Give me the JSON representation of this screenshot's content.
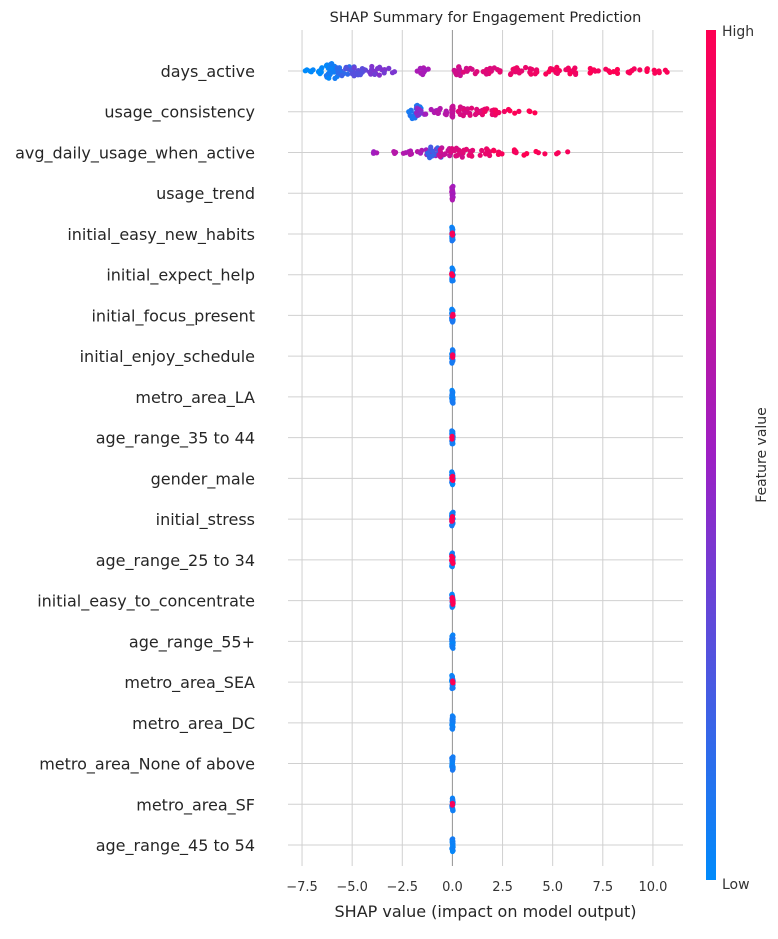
{
  "chart_data": {
    "type": "scatter",
    "subtype": "shap-beeswarm",
    "title": "SHAP Summary for Engagement Prediction",
    "xlabel": "SHAP value (impact on model output)",
    "ylabel": "",
    "xlim": [
      -8.2,
      11.5
    ],
    "xticks": [
      -7.5,
      -5.0,
      -2.5,
      0.0,
      2.5,
      5.0,
      7.5,
      10.0
    ],
    "xtick_labels": [
      "−7.5",
      "−5.0",
      "−2.5",
      "0.0",
      "2.5",
      "5.0",
      "7.5",
      "10.0"
    ],
    "grid": true,
    "colorbar": {
      "label": "Feature value",
      "high_label": "High",
      "low_label": "Low",
      "low_color": "#008bfb",
      "high_color": "#ff0052"
    },
    "features": [
      {
        "name": "days_active",
        "clusters": [
          {
            "x": -7.3,
            "spread": 1,
            "color": 0.0
          },
          {
            "x": -6.8,
            "spread": 1,
            "color": 0.0
          },
          {
            "x": -6.5,
            "spread": 3,
            "color": 0.0
          },
          {
            "x": -6.0,
            "spread": 7,
            "color": 0.05
          },
          {
            "x": -5.4,
            "spread": 4,
            "color": 0.15
          },
          {
            "x": -5.0,
            "spread": 4,
            "color": 0.25
          },
          {
            "x": -4.6,
            "spread": 3,
            "color": 0.3
          },
          {
            "x": -3.8,
            "spread": 4,
            "color": 0.4
          },
          {
            "x": -3.2,
            "spread": 2,
            "color": 0.4
          },
          {
            "x": -1.5,
            "spread": 3,
            "color": 0.55
          },
          {
            "x": 0.4,
            "spread": 4,
            "color": 0.75
          },
          {
            "x": 0.9,
            "spread": 2,
            "color": 0.8
          },
          {
            "x": 1.8,
            "spread": 3,
            "color": 0.85
          },
          {
            "x": 2.5,
            "spread": 1,
            "color": 0.85
          },
          {
            "x": 3.2,
            "spread": 3,
            "color": 0.9
          },
          {
            "x": 4.0,
            "spread": 3,
            "color": 0.9
          },
          {
            "x": 5.0,
            "spread": 3,
            "color": 0.95
          },
          {
            "x": 6.0,
            "spread": 3,
            "color": 0.95
          },
          {
            "x": 7.0,
            "spread": 2,
            "color": 0.97
          },
          {
            "x": 8.0,
            "spread": 2,
            "color": 0.97
          },
          {
            "x": 9.0,
            "spread": 2,
            "color": 0.98
          },
          {
            "x": 10.0,
            "spread": 2,
            "color": 1.0
          },
          {
            "x": 10.6,
            "spread": 1,
            "color": 1.0
          }
        ]
      },
      {
        "name": "usage_consistency",
        "clusters": [
          {
            "x": -1.9,
            "spread": 6,
            "color": 0.1
          },
          {
            "x": -1.5,
            "spread": 3,
            "color": 0.45
          },
          {
            "x": -1.0,
            "spread": 2,
            "color": 0.55
          },
          {
            "x": -0.5,
            "spread": 3,
            "color": 0.6
          },
          {
            "x": 0.0,
            "spread": 5,
            "color": 0.7
          },
          {
            "x": 0.6,
            "spread": 4,
            "color": 0.8
          },
          {
            "x": 1.2,
            "spread": 3,
            "color": 0.85
          },
          {
            "x": 1.8,
            "spread": 3,
            "color": 0.9
          },
          {
            "x": 2.5,
            "spread": 2,
            "color": 0.95
          },
          {
            "x": 3.2,
            "spread": 1,
            "color": 0.97
          },
          {
            "x": 3.8,
            "spread": 1,
            "color": 1.0
          }
        ]
      },
      {
        "name": "avg_daily_usage_when_active",
        "clusters": [
          {
            "x": -3.6,
            "spread": 1,
            "color": 0.55
          },
          {
            "x": -3.1,
            "spread": 1,
            "color": 0.6
          },
          {
            "x": -2.5,
            "spread": 1,
            "color": 0.6
          },
          {
            "x": -1.8,
            "spread": 2,
            "color": 0.6
          },
          {
            "x": -1.1,
            "spread": 3,
            "color": 0.55
          },
          {
            "x": -0.9,
            "spread": 5,
            "color": 0.2
          },
          {
            "x": -0.4,
            "spread": 4,
            "color": 0.7
          },
          {
            "x": 0.2,
            "spread": 4,
            "color": 0.8
          },
          {
            "x": 0.8,
            "spread": 3,
            "color": 0.85
          },
          {
            "x": 1.6,
            "spread": 3,
            "color": 0.9
          },
          {
            "x": 2.4,
            "spread": 2,
            "color": 0.95
          },
          {
            "x": 3.4,
            "spread": 2,
            "color": 0.97
          },
          {
            "x": 4.5,
            "spread": 1,
            "color": 1.0
          },
          {
            "x": 5.5,
            "spread": 1,
            "color": 1.0
          }
        ]
      },
      {
        "name": "usage_trend",
        "clusters": [
          {
            "x": 0.0,
            "spread": 6,
            "color": 0.55
          }
        ]
      },
      {
        "name": "initial_easy_new_habits",
        "clusters": [
          {
            "x": 0.0,
            "spread": 6,
            "color": 0.05
          },
          {
            "x": 0.0,
            "spread": 1,
            "color": 1.0
          }
        ]
      },
      {
        "name": "initial_expect_help",
        "clusters": [
          {
            "x": 0.0,
            "spread": 6,
            "color": 0.05
          },
          {
            "x": 0.0,
            "spread": 1,
            "color": 1.0
          }
        ]
      },
      {
        "name": "initial_focus_present",
        "clusters": [
          {
            "x": 0.0,
            "spread": 6,
            "color": 0.05
          },
          {
            "x": 0.0,
            "spread": 1,
            "color": 1.0
          }
        ]
      },
      {
        "name": "initial_enjoy_schedule",
        "clusters": [
          {
            "x": 0.0,
            "spread": 6,
            "color": 0.05
          },
          {
            "x": 0.0,
            "spread": 1,
            "color": 1.0
          }
        ]
      },
      {
        "name": "metro_area_LA",
        "clusters": [
          {
            "x": 0.0,
            "spread": 6,
            "color": 0.05
          }
        ]
      },
      {
        "name": "age_range_35 to 44",
        "clusters": [
          {
            "x": 0.0,
            "spread": 6,
            "color": 0.05
          },
          {
            "x": 0.0,
            "spread": 1,
            "color": 1.0
          }
        ]
      },
      {
        "name": "gender_male",
        "clusters": [
          {
            "x": 0.0,
            "spread": 6,
            "color": 0.05
          },
          {
            "x": 0.0,
            "spread": 2,
            "color": 1.0
          }
        ]
      },
      {
        "name": "initial_stress",
        "clusters": [
          {
            "x": 0.0,
            "spread": 6,
            "color": 0.05
          },
          {
            "x": 0.0,
            "spread": 2,
            "color": 1.0
          }
        ]
      },
      {
        "name": "age_range_25 to 34",
        "clusters": [
          {
            "x": 0.0,
            "spread": 6,
            "color": 0.05
          },
          {
            "x": 0.0,
            "spread": 3,
            "color": 1.0
          }
        ]
      },
      {
        "name": "initial_easy_to_concentrate",
        "clusters": [
          {
            "x": 0.0,
            "spread": 6,
            "color": 0.05
          },
          {
            "x": 0.0,
            "spread": 3,
            "color": 1.0
          }
        ]
      },
      {
        "name": "age_range_55+",
        "clusters": [
          {
            "x": 0.0,
            "spread": 6,
            "color": 0.05
          }
        ]
      },
      {
        "name": "metro_area_SEA",
        "clusters": [
          {
            "x": 0.0,
            "spread": 6,
            "color": 0.05
          },
          {
            "x": 0.0,
            "spread": 1,
            "color": 1.0
          }
        ]
      },
      {
        "name": "metro_area_DC",
        "clusters": [
          {
            "x": 0.0,
            "spread": 6,
            "color": 0.05
          }
        ]
      },
      {
        "name": "metro_area_None of above",
        "clusters": [
          {
            "x": 0.0,
            "spread": 6,
            "color": 0.05
          }
        ]
      },
      {
        "name": "metro_area_SF",
        "clusters": [
          {
            "x": 0.0,
            "spread": 6,
            "color": 0.05
          },
          {
            "x": 0.0,
            "spread": 1,
            "color": 1.0
          }
        ]
      },
      {
        "name": "age_range_45 to 54",
        "clusters": [
          {
            "x": 0.0,
            "spread": 6,
            "color": 0.05
          }
        ]
      }
    ]
  }
}
